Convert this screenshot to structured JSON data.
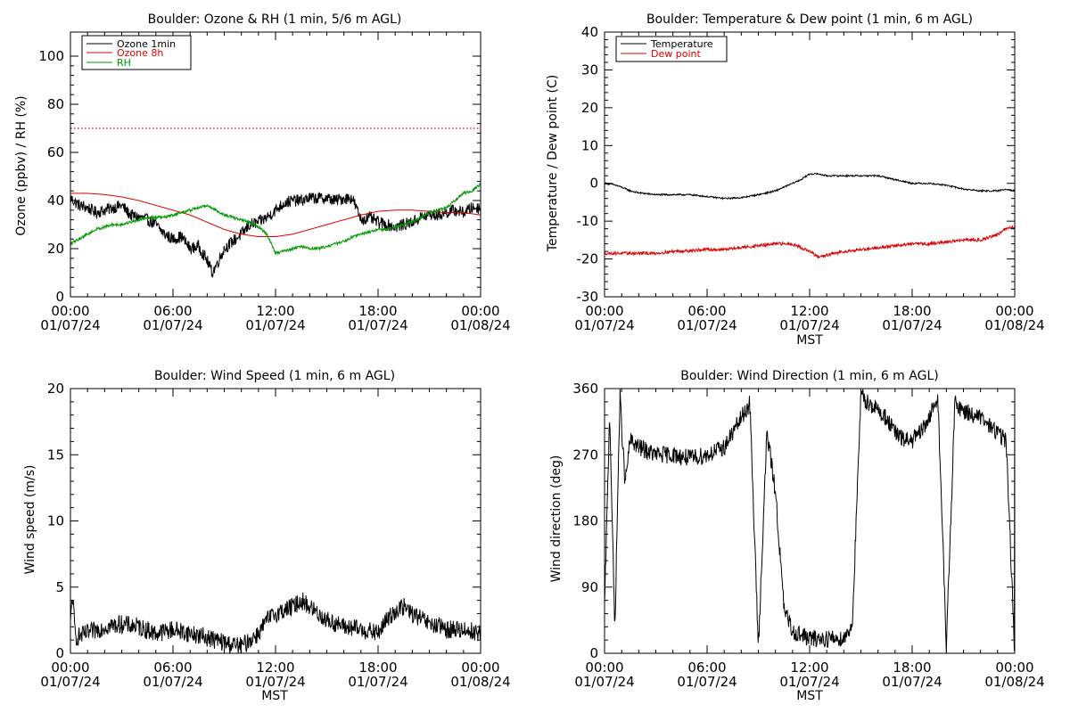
{
  "colors": {
    "ozone_1min": "#000000",
    "ozone_8h": "#dd0000",
    "rh": "#009900",
    "temperature": "#000000",
    "dew_point": "#dd0000",
    "threshold_line": "#dd0000",
    "wind": "#000000"
  },
  "chart_data": [
    {
      "id": "ozone",
      "type": "line",
      "title": "Boulder: Ozone & RH (1 min, 5/6 m AGL)",
      "ylabel": "Ozone (ppbv) / RH (%)",
      "xlabel": "",
      "xlim": [
        0,
        24
      ],
      "ylim": [
        0,
        110
      ],
      "y_ticks": [
        0,
        20,
        40,
        60,
        80,
        100
      ],
      "x_tick_times": [
        "00:00",
        "06:00",
        "12:00",
        "18:00",
        "00:00"
      ],
      "x_tick_dates": [
        "01/07/24",
        "01/07/24",
        "01/07/24",
        "01/07/24",
        "01/08/24"
      ],
      "legend": [
        "Ozone 1min",
        "Ozone 8h",
        "RH"
      ],
      "legend_position": "top-left",
      "threshold": {
        "value": 70,
        "style": "dotted"
      },
      "series": [
        {
          "name": "Ozone 1min",
          "noise": 2.5,
          "x": [
            0,
            0.5,
            1,
            1.5,
            2,
            2.5,
            3,
            3.5,
            4,
            4.5,
            5,
            5.5,
            6,
            6.5,
            7,
            7.5,
            8,
            8.3,
            8.6,
            9,
            9.5,
            10,
            10.5,
            11,
            11.5,
            12,
            12.5,
            13,
            13.5,
            14,
            14.5,
            15,
            15.5,
            16,
            16.5,
            17,
            17.5,
            18,
            18.5,
            19,
            19.5,
            20,
            20.5,
            21,
            21.5,
            22,
            22.5,
            23,
            23.5,
            24
          ],
          "y": [
            41,
            38,
            37,
            35,
            36,
            37,
            38,
            34,
            33,
            32,
            30,
            26,
            24,
            25,
            20,
            21,
            15,
            10,
            14,
            20,
            23,
            26,
            30,
            31,
            33,
            36,
            39,
            40,
            40,
            41,
            41,
            41,
            40,
            41,
            41,
            32,
            33,
            31,
            30,
            29,
            30,
            31,
            33,
            34,
            34,
            35,
            36,
            35,
            37,
            37
          ]
        },
        {
          "name": "Ozone 8h",
          "noise": 0,
          "x": [
            0,
            1,
            2,
            3,
            4,
            5,
            6,
            7,
            8,
            9,
            10,
            11,
            12,
            13,
            14,
            15,
            16,
            17,
            18,
            19,
            20,
            21,
            22,
            23,
            24
          ],
          "y": [
            43,
            43,
            42.5,
            41.5,
            40,
            38,
            36,
            34,
            31,
            28,
            26,
            25,
            25,
            26,
            28,
            30,
            32,
            34,
            35.5,
            36,
            36,
            35.5,
            35,
            35,
            34
          ]
        },
        {
          "name": "RH",
          "noise": 0.6,
          "x": [
            0,
            0.5,
            1,
            1.5,
            2,
            2.5,
            3,
            3.5,
            4,
            4.5,
            5,
            5.5,
            6,
            6.5,
            7,
            7.5,
            8,
            8.5,
            9,
            9.5,
            10,
            10.5,
            11,
            11.5,
            12,
            12.5,
            13,
            13.5,
            14,
            14.5,
            15,
            15.5,
            16,
            16.5,
            17,
            17.5,
            18,
            18.5,
            19,
            19.5,
            20,
            20.5,
            21,
            21.5,
            22,
            22.5,
            23,
            23.5,
            24
          ],
          "y": [
            22,
            24,
            26,
            28,
            29,
            30,
            30,
            31,
            32,
            33,
            33,
            33,
            34,
            35,
            36,
            37,
            38,
            36,
            34,
            33,
            32,
            31,
            29,
            26,
            18,
            19,
            20,
            21,
            20,
            20,
            21,
            22,
            23,
            25,
            26,
            27,
            28,
            28,
            29,
            30,
            31,
            33,
            35,
            36,
            37,
            40,
            43,
            44,
            47
          ]
        }
      ]
    },
    {
      "id": "temp",
      "type": "line",
      "title": "Boulder: Temperature & Dew point (1 min, 6 m AGL)",
      "ylabel": "Temperature / Dew point (C)",
      "xlabel": "MST",
      "xlim": [
        0,
        24
      ],
      "ylim": [
        -30,
        40
      ],
      "y_ticks": [
        -30,
        -20,
        -10,
        0,
        10,
        20,
        30,
        40
      ],
      "x_tick_times": [
        "00:00",
        "06:00",
        "12:00",
        "18:00",
        "00:00"
      ],
      "x_tick_dates": [
        "01/07/24",
        "01/07/24",
        "01/07/24",
        "01/07/24",
        "01/08/24"
      ],
      "legend": [
        "Temperature",
        "Dew point"
      ],
      "legend_position": "top-left",
      "series": [
        {
          "name": "Temperature",
          "noise": 0.2,
          "x": [
            0,
            0.5,
            1,
            1.5,
            2,
            3,
            4,
            5,
            6,
            7,
            8,
            9,
            10,
            10.5,
            11,
            11.5,
            12,
            12.5,
            13,
            14,
            15,
            16,
            17,
            18,
            19,
            20,
            21,
            22,
            23,
            23.5,
            24
          ],
          "y": [
            0,
            -0.3,
            -1,
            -2,
            -2.5,
            -3,
            -3,
            -3,
            -3.5,
            -4,
            -3.8,
            -3,
            -2,
            -1,
            0,
            1,
            2.5,
            2.5,
            2,
            2,
            2,
            2,
            1,
            0,
            0,
            -0.5,
            -1.5,
            -2,
            -2,
            -1.5,
            -2
          ]
        },
        {
          "name": "Dew point",
          "noise": 0.4,
          "x": [
            0,
            1,
            2,
            3,
            4,
            5,
            6,
            7,
            8,
            9,
            10,
            11,
            11.5,
            12,
            12.5,
            13,
            13.5,
            14,
            15,
            16,
            17,
            18,
            19,
            20,
            21,
            22,
            23,
            23.5,
            24
          ],
          "y": [
            -18.5,
            -18.5,
            -18.5,
            -18.5,
            -18,
            -17.8,
            -17.5,
            -17.5,
            -17,
            -16.5,
            -16,
            -16,
            -17,
            -18,
            -19.5,
            -19,
            -18.5,
            -18,
            -17.5,
            -17,
            -16.5,
            -16,
            -16,
            -15.5,
            -15,
            -15,
            -13.5,
            -12,
            -11.5
          ]
        }
      ]
    },
    {
      "id": "wspd",
      "type": "line",
      "title": "Boulder: Wind Speed (1 min, 6 m AGL)",
      "ylabel": "Wind speed (m/s)",
      "xlabel": "MST",
      "xlim": [
        0,
        24
      ],
      "ylim": [
        0,
        20
      ],
      "y_ticks": [
        0,
        5,
        10,
        15,
        20
      ],
      "x_tick_times": [
        "00:00",
        "06:00",
        "12:00",
        "18:00",
        "00:00"
      ],
      "x_tick_dates": [
        "01/07/24",
        "01/07/24",
        "01/07/24",
        "01/07/24",
        "01/08/24"
      ],
      "series": [
        {
          "name": "",
          "noise": 0.7,
          "x": [
            0,
            0.1,
            0.3,
            1,
            2,
            3,
            4,
            5,
            6,
            7,
            8,
            9,
            10,
            11,
            11.5,
            12,
            13,
            13.5,
            14,
            15,
            16,
            17,
            18,
            18.5,
            19,
            19.5,
            20,
            21,
            22,
            23,
            24
          ],
          "y": [
            2,
            4.5,
            1.2,
            1.5,
            2,
            2.2,
            2,
            1.5,
            1.8,
            1.5,
            1.2,
            0.8,
            0.5,
            1.5,
            2.5,
            3,
            3.5,
            4,
            3.5,
            2.5,
            2,
            1.8,
            1.5,
            2.5,
            3.2,
            3.5,
            3,
            2.2,
            1.8,
            1.8,
            1.5
          ]
        }
      ]
    },
    {
      "id": "wdir",
      "type": "line",
      "title": "Boulder: Wind Direction (1 min, 6 m AGL)",
      "ylabel": "Wind direction (deg)",
      "xlabel": "MST",
      "xlim": [
        0,
        24
      ],
      "ylim": [
        0,
        360
      ],
      "y_ticks": [
        0,
        90,
        180,
        270,
        360
      ],
      "x_tick_times": [
        "00:00",
        "06:00",
        "12:00",
        "18:00",
        "00:00"
      ],
      "x_tick_dates": [
        "01/07/24",
        "01/07/24",
        "01/07/24",
        "01/07/24",
        "01/08/24"
      ],
      "series": [
        {
          "name": "",
          "noise": 12,
          "wrap": [
            0,
            360
          ],
          "x": [
            0,
            0.3,
            0.6,
            0.9,
            1.2,
            1.5,
            2,
            3,
            4,
            5,
            6,
            7,
            7.5,
            8,
            8.5,
            9,
            9.5,
            10,
            10.5,
            11,
            12,
            13,
            14,
            14.5,
            15,
            15.5,
            16,
            16.5,
            17,
            17.5,
            18,
            18.5,
            19,
            19.5,
            20,
            20.5,
            21,
            22,
            23,
            23.5,
            24
          ],
          "y": [
            60,
            330,
            30,
            350,
            230,
            290,
            280,
            270,
            270,
            265,
            270,
            280,
            300,
            320,
            340,
            10,
            300,
            220,
            60,
            30,
            20,
            20,
            20,
            40,
            350,
            340,
            330,
            320,
            300,
            290,
            290,
            300,
            320,
            350,
            10,
            340,
            330,
            320,
            300,
            290,
            0
          ]
        }
      ]
    }
  ]
}
